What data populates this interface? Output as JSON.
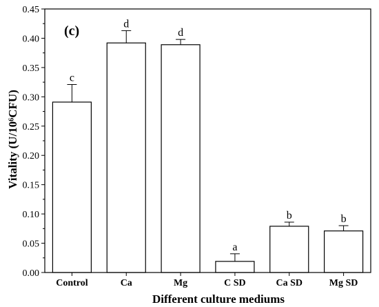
{
  "chart_data": {
    "type": "bar",
    "panel_label": "(c)",
    "xlabel": "Different culture mediums",
    "ylabel": "Vitality (U/10⁶CFU)",
    "ylim": [
      0,
      0.45
    ],
    "yticks": [
      "0.00",
      "0.05",
      "0.10",
      "0.15",
      "0.20",
      "0.25",
      "0.30",
      "0.35",
      "0.40",
      "0.45"
    ],
    "categories": [
      "Control",
      "Ca",
      "Mg",
      "C SD",
      "Ca SD",
      "Mg SD"
    ],
    "values": [
      0.291,
      0.392,
      0.389,
      0.019,
      0.079,
      0.071
    ],
    "errors": [
      0.03,
      0.021,
      0.009,
      0.013,
      0.007,
      0.009
    ],
    "significance": [
      "c",
      "d",
      "d",
      "a",
      "b",
      "b"
    ],
    "grid": false,
    "bar_color": "#ffffff",
    "edge_color": "#000000"
  }
}
